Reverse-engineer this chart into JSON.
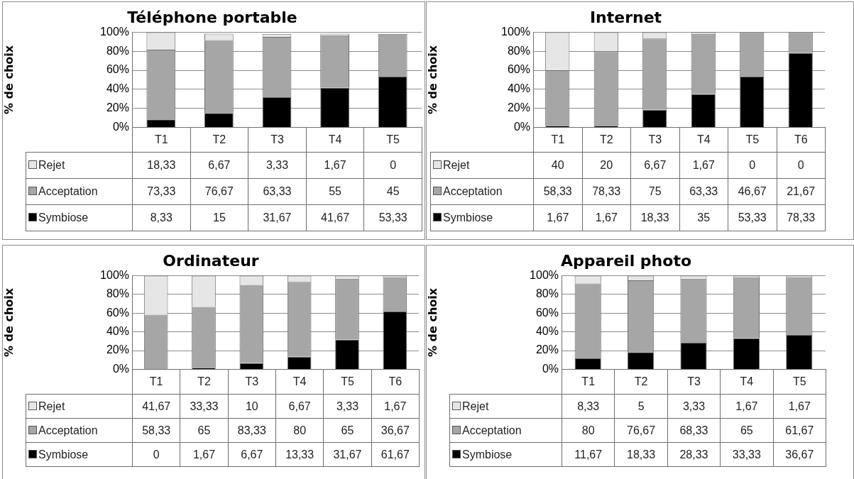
{
  "chart_data": [
    {
      "type": "bar",
      "title": "Téléphone portable",
      "ylabel": "% de choix",
      "categories": [
        "T1",
        "T2",
        "T3",
        "T4",
        "T5"
      ],
      "stacked": true,
      "ylim": [
        0,
        100
      ],
      "yticks": [
        {
          "value": 0,
          "label": "0%"
        },
        {
          "value": 20,
          "label": "20%"
        },
        {
          "value": 40,
          "label": "40%"
        },
        {
          "value": 60,
          "label": "60%"
        },
        {
          "value": 80,
          "label": "80%"
        },
        {
          "value": 100,
          "label": "100%"
        }
      ],
      "grid": "y",
      "legend": "bottom",
      "series": [
        {
          "name": "Symbiose",
          "color": "#000000",
          "values": [
            8.33,
            15,
            31.67,
            41.67,
            53.33
          ],
          "value_labels": [
            "8,33",
            "15",
            "31,67",
            "41,67",
            "53,33"
          ]
        },
        {
          "name": "Acceptation",
          "color": "#a6a6a6",
          "values": [
            73.33,
            76.67,
            63.33,
            55,
            45
          ],
          "value_labels": [
            "73,33",
            "76,67",
            "63,33",
            "55",
            "45"
          ]
        },
        {
          "name": "Rejet",
          "color": "#e6e6e6",
          "values": [
            18.33,
            6.67,
            3.33,
            1.67,
            0
          ],
          "value_labels": [
            "18,33",
            "6,67",
            "3,33",
            "1,67",
            "0"
          ]
        }
      ]
    },
    {
      "type": "bar",
      "title": "Internet",
      "ylabel": "% de choix",
      "categories": [
        "T1",
        "T2",
        "T3",
        "T4",
        "T5",
        "T6"
      ],
      "stacked": true,
      "ylim": [
        0,
        100
      ],
      "yticks": [
        {
          "value": 0,
          "label": "0%"
        },
        {
          "value": 20,
          "label": "20%"
        },
        {
          "value": 40,
          "label": "40%"
        },
        {
          "value": 60,
          "label": "60%"
        },
        {
          "value": 80,
          "label": "80%"
        },
        {
          "value": 100,
          "label": "100%"
        }
      ],
      "grid": "y",
      "legend": "bottom",
      "series": [
        {
          "name": "Symbiose",
          "color": "#000000",
          "values": [
            1.67,
            1.67,
            18.33,
            35,
            53.33,
            78.33
          ],
          "value_labels": [
            "1,67",
            "1,67",
            "18,33",
            "35",
            "53,33",
            "78,33"
          ]
        },
        {
          "name": "Acceptation",
          "color": "#a6a6a6",
          "values": [
            58.33,
            78.33,
            75,
            63.33,
            46.67,
            21.67
          ],
          "value_labels": [
            "58,33",
            "78,33",
            "75",
            "63,33",
            "46,67",
            "21,67"
          ]
        },
        {
          "name": "Rejet",
          "color": "#e6e6e6",
          "values": [
            40,
            20,
            6.67,
            1.67,
            0,
            0
          ],
          "value_labels": [
            "40",
            "20",
            "6,67",
            "1,67",
            "0",
            "0"
          ]
        }
      ]
    },
    {
      "type": "bar",
      "title": "Ordinateur",
      "ylabel": "% de choix",
      "categories": [
        "T1",
        "T2",
        "T3",
        "T4",
        "T5",
        "T6"
      ],
      "stacked": true,
      "ylim": [
        0,
        100
      ],
      "yticks": [
        {
          "value": 0,
          "label": "0%"
        },
        {
          "value": 20,
          "label": "20%"
        },
        {
          "value": 40,
          "label": "40%"
        },
        {
          "value": 60,
          "label": "60%"
        },
        {
          "value": 80,
          "label": "80%"
        },
        {
          "value": 100,
          "label": "100%"
        }
      ],
      "grid": "y",
      "legend": "bottom",
      "series": [
        {
          "name": "Symbiose",
          "color": "#000000",
          "values": [
            0,
            1.67,
            6.67,
            13.33,
            31.67,
            61.67
          ],
          "value_labels": [
            "0",
            "1,67",
            "6,67",
            "13,33",
            "31,67",
            "61,67"
          ]
        },
        {
          "name": "Acceptation",
          "color": "#a6a6a6",
          "values": [
            58.33,
            65,
            83.33,
            80,
            65,
            36.67
          ],
          "value_labels": [
            "58,33",
            "65",
            "83,33",
            "80",
            "65",
            "36,67"
          ]
        },
        {
          "name": "Rejet",
          "color": "#e6e6e6",
          "values": [
            41.67,
            33.33,
            10,
            6.67,
            3.33,
            1.67
          ],
          "value_labels": [
            "41,67",
            "33,33",
            "10",
            "6,67",
            "3,33",
            "1,67"
          ]
        }
      ]
    },
    {
      "type": "bar",
      "title": "Appareil photo",
      "ylabel": "% de choix",
      "categories": [
        "T1",
        "T2",
        "T3",
        "T4",
        "T5"
      ],
      "stacked": true,
      "ylim": [
        0,
        100
      ],
      "yticks": [
        {
          "value": 0,
          "label": "0%"
        },
        {
          "value": 20,
          "label": "20%"
        },
        {
          "value": 40,
          "label": "40%"
        },
        {
          "value": 60,
          "label": "60%"
        },
        {
          "value": 80,
          "label": "80%"
        },
        {
          "value": 100,
          "label": "100%"
        }
      ],
      "grid": "y",
      "legend": "bottom",
      "series": [
        {
          "name": "Symbiose",
          "color": "#000000",
          "values": [
            11.67,
            18.33,
            28.33,
            33.33,
            36.67
          ],
          "value_labels": [
            "11,67",
            "18,33",
            "28,33",
            "33,33",
            "36,67"
          ]
        },
        {
          "name": "Acceptation",
          "color": "#a6a6a6",
          "values": [
            80,
            76.67,
            68.33,
            65,
            61.67
          ],
          "value_labels": [
            "80",
            "76,67",
            "68,33",
            "65",
            "61,67"
          ]
        },
        {
          "name": "Rejet",
          "color": "#e6e6e6",
          "values": [
            8.33,
            5,
            3.33,
            1.67,
            1.67
          ],
          "value_labels": [
            "8,33",
            "5",
            "3,33",
            "1,67",
            "1,67"
          ]
        }
      ]
    }
  ]
}
